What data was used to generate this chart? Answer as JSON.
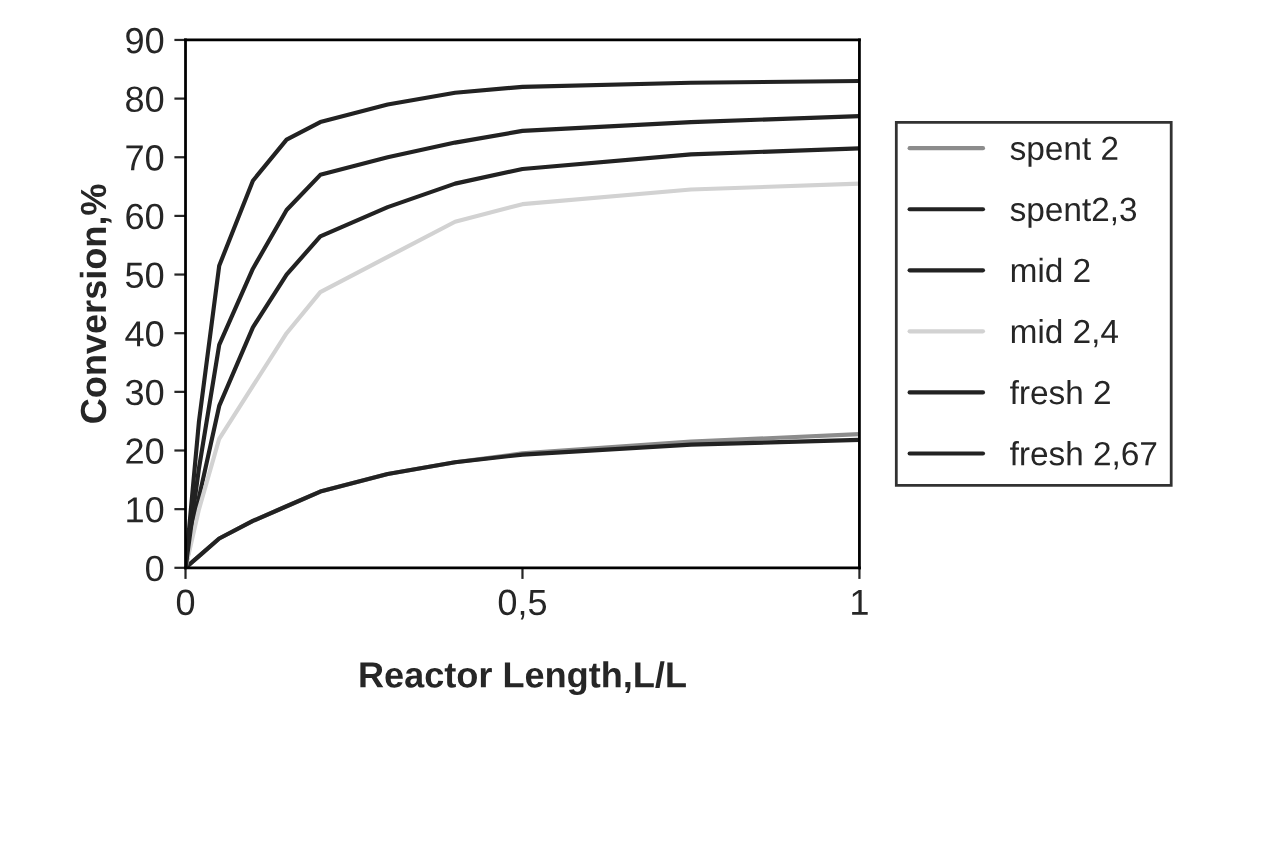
{
  "chart_data": {
    "type": "line",
    "xlabel": "Reactor Length,L/L",
    "ylabel": "Conversion,%",
    "xlim": [
      0,
      1
    ],
    "ylim": [
      0,
      90
    ],
    "xticks": [
      0,
      {
        "value": 0.5,
        "label": "0,5"
      },
      1
    ],
    "yticks": [
      0,
      10,
      20,
      30,
      40,
      50,
      60,
      70,
      80,
      90
    ],
    "x": [
      0,
      0.02,
      0.05,
      0.1,
      0.15,
      0.2,
      0.3,
      0.4,
      0.5,
      0.75,
      1
    ],
    "series": [
      {
        "name": "spent 2",
        "color": "#8c8c8c",
        "values": [
          0,
          2,
          5,
          8,
          10.5,
          13,
          16,
          18,
          19.5,
          21.5,
          22.8
        ]
      },
      {
        "name": "spent2,3",
        "color": "#222222",
        "values": [
          0,
          2,
          5,
          8,
          10.5,
          13,
          16,
          18,
          19.3,
          21,
          21.8
        ]
      },
      {
        "name": "mid 2",
        "color": "#222222",
        "values": [
          0,
          12,
          27.6,
          41,
          50,
          56.5,
          61.5,
          65.5,
          68,
          70.5,
          71.5
        ]
      },
      {
        "name": "mid 2,4",
        "color": "#d2d2d2",
        "values": [
          0,
          10,
          22,
          31,
          40,
          47,
          53,
          59,
          62,
          64.5,
          65.5
        ]
      },
      {
        "name": "fresh 2",
        "color": "#222222",
        "values": [
          0,
          17,
          38,
          51,
          61,
          67,
          70,
          72.5,
          74.5,
          76,
          77
        ]
      },
      {
        "name": "fresh 2,67",
        "color": "#222222",
        "values": [
          0,
          25,
          51.5,
          66,
          73,
          76,
          79,
          81,
          82,
          82.7,
          83
        ]
      }
    ],
    "legend": "right",
    "grid": false,
    "marker": "none",
    "line_style": "solid"
  }
}
